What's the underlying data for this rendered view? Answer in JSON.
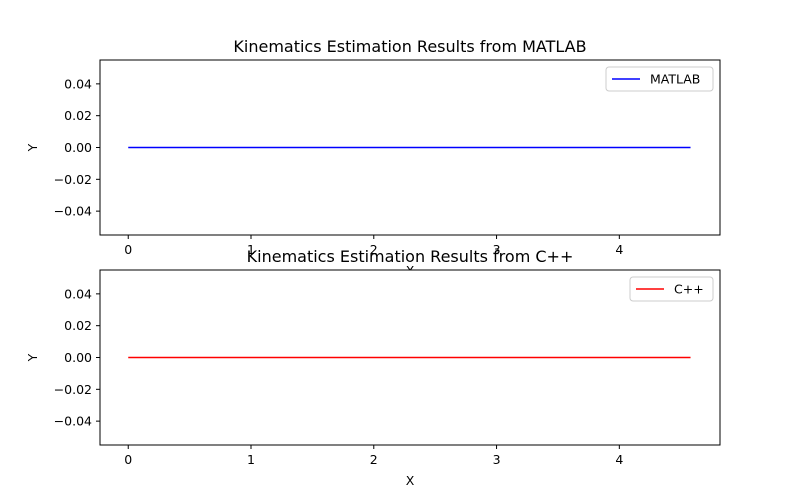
{
  "chart_data": [
    {
      "type": "line",
      "title": "Kinematics Estimation Results from MATLAB",
      "xlabel": "X",
      "ylabel": "Y",
      "xlim": [
        -0.23,
        4.82
      ],
      "ylim": [
        -0.055,
        0.055
      ],
      "xticks": [
        0,
        1,
        2,
        3,
        4
      ],
      "xtick_labels": [
        "0",
        "1",
        "2",
        "3",
        "4"
      ],
      "yticks": [
        -0.04,
        -0.02,
        0.0,
        0.02,
        0.04
      ],
      "ytick_labels": [
        "−0.04",
        "−0.02",
        "0.00",
        "0.02",
        "0.04"
      ],
      "grid": false,
      "legend": "upper-right",
      "series": [
        {
          "name": "MATLAB",
          "color": "#0000ff",
          "x": [
            0,
            4.58
          ],
          "y": [
            0,
            0
          ]
        }
      ]
    },
    {
      "type": "line",
      "title": "Kinematics Estimation Results from C++",
      "xlabel": "X",
      "ylabel": "Y",
      "xlim": [
        -0.23,
        4.82
      ],
      "ylim": [
        -0.055,
        0.055
      ],
      "xticks": [
        0,
        1,
        2,
        3,
        4
      ],
      "xtick_labels": [
        "0",
        "1",
        "2",
        "3",
        "4"
      ],
      "yticks": [
        -0.04,
        -0.02,
        0.0,
        0.02,
        0.04
      ],
      "ytick_labels": [
        "−0.04",
        "−0.02",
        "0.00",
        "0.02",
        "0.04"
      ],
      "grid": false,
      "legend": "upper-right",
      "series": [
        {
          "name": "C++",
          "color": "#ff0000",
          "x": [
            0,
            4.58
          ],
          "y": [
            0,
            0
          ]
        }
      ]
    }
  ]
}
